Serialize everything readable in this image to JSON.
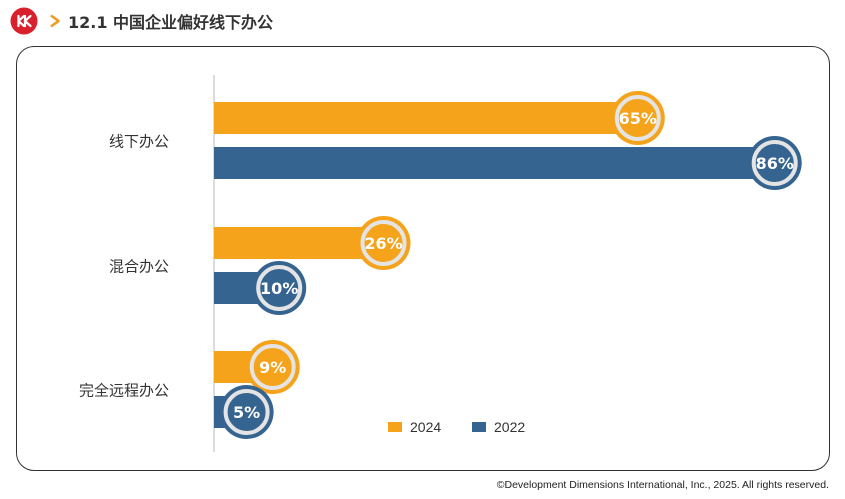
{
  "header": {
    "title": "12.1 中国企业偏好线下办公",
    "logo_icon": "ddi-logo-icon",
    "chevron_icon": "chevron-right-icon"
  },
  "colors": {
    "series_2024": "#F5A31A",
    "series_2022": "#356491",
    "brand_red": "#D9202D",
    "chevron": "#F39A1B"
  },
  "chart_data": {
    "type": "bar",
    "orientation": "horizontal",
    "title": "",
    "xlabel": "",
    "ylabel": "",
    "categories": [
      "线下办公",
      "混合办公",
      "完全远程办公"
    ],
    "series": [
      {
        "name": "2024",
        "values": [
          65,
          26,
          9
        ],
        "labels": [
          "65%",
          "26%",
          "9%"
        ],
        "color": "#F5A31A"
      },
      {
        "name": "2022",
        "values": [
          86,
          10,
          5
        ],
        "labels": [
          "86%",
          "10%",
          "5%"
        ],
        "color": "#356491"
      }
    ],
    "xlim": [
      0,
      100
    ],
    "grid": false,
    "legend": "bottom-right"
  },
  "footer": {
    "copyright": "©Development Dimensions International, Inc., 2025. All rights reserved."
  }
}
